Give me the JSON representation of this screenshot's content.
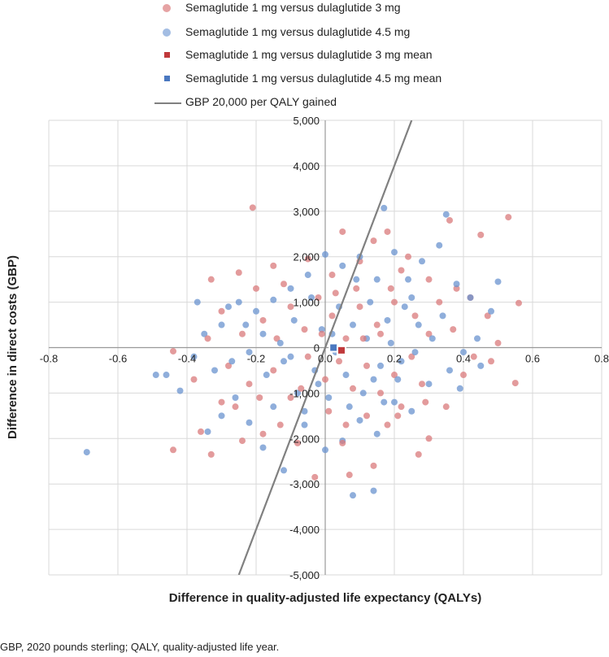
{
  "chart_data": {
    "type": "scatter",
    "xlabel": "Difference in quality-adjusted life expectancy (QALYs)",
    "ylabel": "Difference in direct costs (GBP)",
    "xlim": [
      -0.8,
      0.8
    ],
    "ylim": [
      -5000,
      5000
    ],
    "xticks": [
      -0.8,
      -0.6,
      -0.4,
      -0.2,
      0.0,
      0.2,
      0.4,
      0.6,
      0.8
    ],
    "xtick_labels": [
      "-0.8",
      "-0.6",
      "-0.4",
      "-0.2",
      "0.0",
      "0.2",
      "0.4",
      "0.6",
      "0.8"
    ],
    "yticks": [
      -5000,
      -4000,
      -3000,
      -2000,
      -1000,
      0,
      1000,
      2000,
      3000,
      4000,
      5000
    ],
    "ytick_labels": [
      "-5,000",
      "-4,000",
      "-3,000",
      "-2,000",
      "-1,000",
      "0",
      "1,000",
      "2,000",
      "3,000",
      "4,000",
      "5,000"
    ],
    "grid": true,
    "legend_position": "top",
    "colors": {
      "red": "#d9797b",
      "blue": "#6a93cf",
      "red_mean": "#c0393b",
      "blue_mean": "#4a78c0",
      "threshold": "#808080"
    },
    "series": [
      {
        "name": "Semaglutide 1 mg versus dulaglutide 3 mg",
        "kind": "points",
        "color": "#d9797b",
        "points": [
          [
            -0.21,
            3080
          ],
          [
            0.53,
            2870
          ],
          [
            0.56,
            980
          ],
          [
            0.55,
            -780
          ],
          [
            0.45,
            2480
          ],
          [
            0.36,
            2800
          ],
          [
            -0.44,
            -2250
          ],
          [
            -0.44,
            -80
          ],
          [
            -0.36,
            -1850
          ],
          [
            -0.33,
            -2350
          ],
          [
            -0.33,
            1500
          ],
          [
            -0.25,
            1650
          ],
          [
            -0.2,
            1300
          ],
          [
            -0.15,
            1800
          ],
          [
            -0.05,
            1950
          ],
          [
            0.02,
            1600
          ],
          [
            0.05,
            2550
          ],
          [
            0.1,
            1900
          ],
          [
            0.14,
            2350
          ],
          [
            0.18,
            2550
          ],
          [
            0.22,
            1700
          ],
          [
            0.3,
            1500
          ],
          [
            0.38,
            1300
          ],
          [
            0.42,
            1100
          ],
          [
            0.47,
            700
          ],
          [
            0.5,
            100
          ],
          [
            0.48,
            -300
          ],
          [
            0.4,
            -600
          ],
          [
            0.35,
            -1300
          ],
          [
            0.3,
            -2000
          ],
          [
            0.27,
            -2350
          ],
          [
            0.22,
            -1300
          ],
          [
            0.18,
            -1700
          ],
          [
            0.12,
            -1500
          ],
          [
            0.07,
            -2800
          ],
          [
            0.05,
            -2100
          ],
          [
            -0.03,
            -2850
          ],
          [
            -0.08,
            -2100
          ],
          [
            -0.13,
            -1700
          ],
          [
            -0.18,
            -1900
          ],
          [
            -0.24,
            -2050
          ],
          [
            -0.3,
            -1200
          ],
          [
            -0.38,
            -700
          ],
          [
            -0.28,
            -400
          ],
          [
            -0.22,
            -800
          ],
          [
            -0.15,
            -500
          ],
          [
            -0.1,
            -1100
          ],
          [
            -0.05,
            -200
          ],
          [
            0.0,
            -700
          ],
          [
            0.04,
            -300
          ],
          [
            0.08,
            -900
          ],
          [
            0.12,
            -400
          ],
          [
            0.16,
            -1000
          ],
          [
            0.2,
            -600
          ],
          [
            0.25,
            -200
          ],
          [
            0.3,
            300
          ],
          [
            0.26,
            700
          ],
          [
            0.2,
            1000
          ],
          [
            0.15,
            500
          ],
          [
            0.1,
            900
          ],
          [
            0.06,
            200
          ],
          [
            0.02,
            700
          ],
          [
            -0.02,
            1100
          ],
          [
            -0.06,
            400
          ],
          [
            -0.1,
            900
          ],
          [
            -0.14,
            200
          ],
          [
            -0.18,
            600
          ],
          [
            -0.24,
            300
          ],
          [
            -0.3,
            800
          ],
          [
            -0.34,
            200
          ],
          [
            0.33,
            1000
          ],
          [
            0.37,
            400
          ],
          [
            0.28,
            -800
          ],
          [
            0.09,
            1300
          ],
          [
            -0.12,
            1400
          ],
          [
            0.01,
            -1400
          ],
          [
            0.14,
            -2600
          ],
          [
            0.16,
            300
          ],
          [
            -0.07,
            -900
          ],
          [
            0.21,
            -1500
          ],
          [
            0.24,
            2000
          ],
          [
            -0.26,
            -1300
          ],
          [
            0.43,
            -200
          ],
          [
            0.11,
            200
          ],
          [
            0.03,
            1200
          ],
          [
            -0.19,
            -1100
          ],
          [
            0.06,
            -1700
          ],
          [
            0.19,
            1300
          ],
          [
            0.29,
            -1200
          ],
          [
            -0.01,
            300
          ]
        ]
      },
      {
        "name": "Semaglutide 1 mg versus dulaglutide 4.5 mg",
        "kind": "points",
        "color": "#6a93cf",
        "points": [
          [
            -0.69,
            -2300
          ],
          [
            0.17,
            3070
          ],
          [
            0.35,
            2930
          ],
          [
            0.08,
            -3250
          ],
          [
            0.14,
            -3150
          ],
          [
            -0.49,
            -600
          ],
          [
            -0.46,
            -600
          ],
          [
            -0.42,
            -950
          ],
          [
            -0.37,
            1000
          ],
          [
            -0.34,
            -1850
          ],
          [
            -0.3,
            -1500
          ],
          [
            -0.26,
            -1100
          ],
          [
            -0.22,
            -1650
          ],
          [
            -0.18,
            -2200
          ],
          [
            -0.12,
            -2700
          ],
          [
            -0.06,
            -1700
          ],
          [
            0.0,
            -2250
          ],
          [
            0.05,
            -2050
          ],
          [
            0.1,
            -1600
          ],
          [
            0.15,
            -1900
          ],
          [
            0.2,
            -1200
          ],
          [
            0.25,
            -1400
          ],
          [
            0.3,
            -800
          ],
          [
            0.36,
            -500
          ],
          [
            0.4,
            -100
          ],
          [
            0.44,
            200
          ],
          [
            0.5,
            1450
          ],
          [
            0.48,
            800
          ],
          [
            0.42,
            1100
          ],
          [
            0.38,
            1400
          ],
          [
            0.33,
            2250
          ],
          [
            0.28,
            1900
          ],
          [
            0.24,
            1500
          ],
          [
            0.2,
            2100
          ],
          [
            0.15,
            1500
          ],
          [
            0.1,
            2000
          ],
          [
            0.05,
            1800
          ],
          [
            0.0,
            2050
          ],
          [
            -0.05,
            1600
          ],
          [
            -0.1,
            1300
          ],
          [
            -0.15,
            1050
          ],
          [
            -0.2,
            800
          ],
          [
            -0.25,
            1000
          ],
          [
            -0.3,
            500
          ],
          [
            -0.35,
            300
          ],
          [
            -0.38,
            -200
          ],
          [
            -0.32,
            -500
          ],
          [
            -0.27,
            -300
          ],
          [
            -0.22,
            -100
          ],
          [
            -0.17,
            -600
          ],
          [
            -0.12,
            -300
          ],
          [
            -0.08,
            -1000
          ],
          [
            -0.03,
            -500
          ],
          [
            0.01,
            -1100
          ],
          [
            0.06,
            -600
          ],
          [
            0.11,
            -1000
          ],
          [
            0.16,
            -400
          ],
          [
            0.21,
            -700
          ],
          [
            0.26,
            -100
          ],
          [
            0.31,
            200
          ],
          [
            0.27,
            500
          ],
          [
            0.23,
            900
          ],
          [
            0.18,
            600
          ],
          [
            0.13,
            1000
          ],
          [
            0.08,
            500
          ],
          [
            0.04,
            900
          ],
          [
            -0.01,
            400
          ],
          [
            -0.04,
            1100
          ],
          [
            -0.09,
            600
          ],
          [
            -0.13,
            100
          ],
          [
            -0.18,
            300
          ],
          [
            -0.23,
            500
          ],
          [
            -0.28,
            900
          ],
          [
            0.34,
            700
          ],
          [
            0.39,
            -900
          ],
          [
            0.45,
            -400
          ],
          [
            0.17,
            -1200
          ],
          [
            0.07,
            -1300
          ],
          [
            -0.06,
            -1400
          ],
          [
            -0.15,
            -1300
          ],
          [
            0.12,
            200
          ],
          [
            0.02,
            300
          ],
          [
            -0.1,
            -200
          ],
          [
            0.19,
            100
          ],
          [
            0.25,
            1100
          ],
          [
            0.09,
            1500
          ],
          [
            -0.02,
            -800
          ],
          [
            0.14,
            -700
          ],
          [
            0.22,
            -300
          ],
          [
            0.03,
            -100
          ]
        ]
      },
      {
        "name": "Semaglutide 1 mg versus dulaglutide 3 mg mean",
        "kind": "mean",
        "color": "#c0393b",
        "points": [
          [
            0.047,
            -60
          ]
        ]
      },
      {
        "name": "Semaglutide 1 mg versus dulaglutide 4.5 mg mean",
        "kind": "mean",
        "color": "#4a78c0",
        "points": [
          [
            0.024,
            0
          ]
        ]
      },
      {
        "name": "GBP 20,000 per QALY gained",
        "kind": "line",
        "color": "#808080",
        "wtp_per_qaly": 20000
      }
    ]
  },
  "footnote": "GBP, 2020 pounds sterling; QALY, quality-adjusted life year."
}
